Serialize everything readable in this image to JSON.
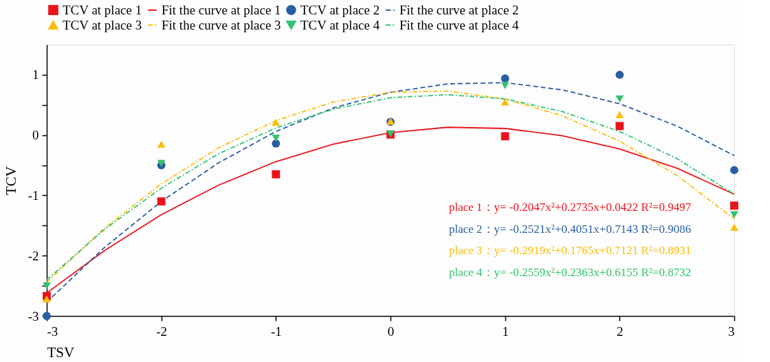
{
  "chart_data": {
    "type": "scatter",
    "xlabel": "TSV",
    "ylabel": "TCV",
    "xlim": [
      -3,
      3
    ],
    "xticks": [
      -3,
      -2,
      -1,
      0,
      1,
      2,
      3
    ],
    "ylim": [
      -3,
      1.5
    ],
    "yticks": [
      -3,
      {
        "value": -2.5,
        "label": null
      },
      -2,
      {
        "value": -1.5,
        "label": null
      },
      -1,
      {
        "value": -0.5,
        "label": null
      },
      0,
      {
        "value": 0.5,
        "label": null
      },
      1
    ],
    "grid": false,
    "legend": "top",
    "series": [
      {
        "name": "TCV at place 1",
        "marker": "square",
        "color": "#e8141b",
        "x": [
          -3,
          -2,
          -1,
          0,
          1,
          2,
          3
        ],
        "values": [
          -2.67,
          -1.1,
          -0.65,
          0.01,
          -0.02,
          0.15,
          -1.17
        ]
      },
      {
        "name": "Fit the curve at place 1",
        "type": "line",
        "line_style": "solid",
        "color": "#e8141b",
        "x": [
          -3,
          -2.5,
          -2,
          -1.5,
          -1,
          -0.5,
          0,
          0.5,
          1,
          1.5,
          2,
          2.5,
          3
        ],
        "values": [
          -2.62,
          -1.92,
          -1.32,
          -0.83,
          -0.44,
          -0.15,
          0.04,
          0.13,
          0.11,
          -0.01,
          -0.23,
          -0.55,
          -0.98
        ]
      },
      {
        "name": "TCV at place 2",
        "marker": "circle",
        "color": "#2a5ea0",
        "x": [
          -3,
          -2,
          -1,
          0,
          1,
          2,
          3
        ],
        "values": [
          -3.0,
          -0.5,
          -0.14,
          0.22,
          0.94,
          1.0,
          -0.58
        ]
      },
      {
        "name": "Fit the curve at place 2",
        "type": "line",
        "line_style": "dashed",
        "color": "#2a5ea0",
        "x": [
          -3,
          -2.5,
          -2,
          -1.5,
          -1,
          -0.5,
          0,
          0.5,
          1,
          1.5,
          2,
          2.5,
          3
        ],
        "values": [
          -2.77,
          -1.87,
          -1.1,
          -0.46,
          0.06,
          0.45,
          0.71,
          0.85,
          0.87,
          0.75,
          0.52,
          0.15,
          -0.34
        ]
      },
      {
        "name": "TCV at place 3",
        "marker": "triangle",
        "color": "#fbbd0d",
        "x": [
          -3,
          -2,
          -1,
          0,
          1,
          2,
          3
        ],
        "values": [
          -2.72,
          -0.15,
          0.21,
          0.23,
          0.55,
          0.34,
          -1.53
        ]
      },
      {
        "name": "Fit the curve at place 3",
        "type": "line",
        "line_style": "dotted",
        "color": "#fbbd0d",
        "x": [
          -3,
          -2.5,
          -2,
          -1.5,
          -1,
          -0.5,
          0,
          0.5,
          1,
          1.5,
          2,
          2.5,
          3
        ],
        "values": [
          -2.44,
          -1.55,
          -0.81,
          -0.21,
          0.24,
          0.55,
          0.71,
          0.73,
          0.6,
          0.32,
          -0.1,
          -0.67,
          -1.39
        ]
      },
      {
        "name": "TCV at place 4",
        "marker": "triangle-down",
        "color": "#33c270",
        "x": [
          -3,
          -2,
          -1,
          0,
          1,
          2,
          3
        ],
        "values": [
          -2.5,
          -0.47,
          -0.05,
          0.02,
          0.82,
          0.6,
          -1.32
        ]
      },
      {
        "name": "Fit the curve at place 4",
        "type": "line",
        "line_style": "dotted",
        "color": "#33c270",
        "x": [
          -3,
          -2.5,
          -2,
          -1.5,
          -1,
          -0.5,
          0,
          0.5,
          1,
          1.5,
          2,
          2.5,
          3
        ],
        "values": [
          -2.4,
          -1.57,
          -0.88,
          -0.31,
          0.12,
          0.43,
          0.62,
          0.67,
          0.6,
          0.39,
          0.06,
          -0.39,
          -0.98
        ]
      }
    ],
    "annotations": [
      "place 1：y= -0.2047x²+0.2735x+0.0422   R²=0.9497",
      "place 2：y= -0.2521x²+0.4051x+0.7143   R²=0.9086",
      "place 3：y= -0.2919x²+0.1765x+0.7121   R²=0.8931",
      "place 4：y= -0.2559x²+0.2363x+0.6155   R²=0.8732"
    ]
  }
}
